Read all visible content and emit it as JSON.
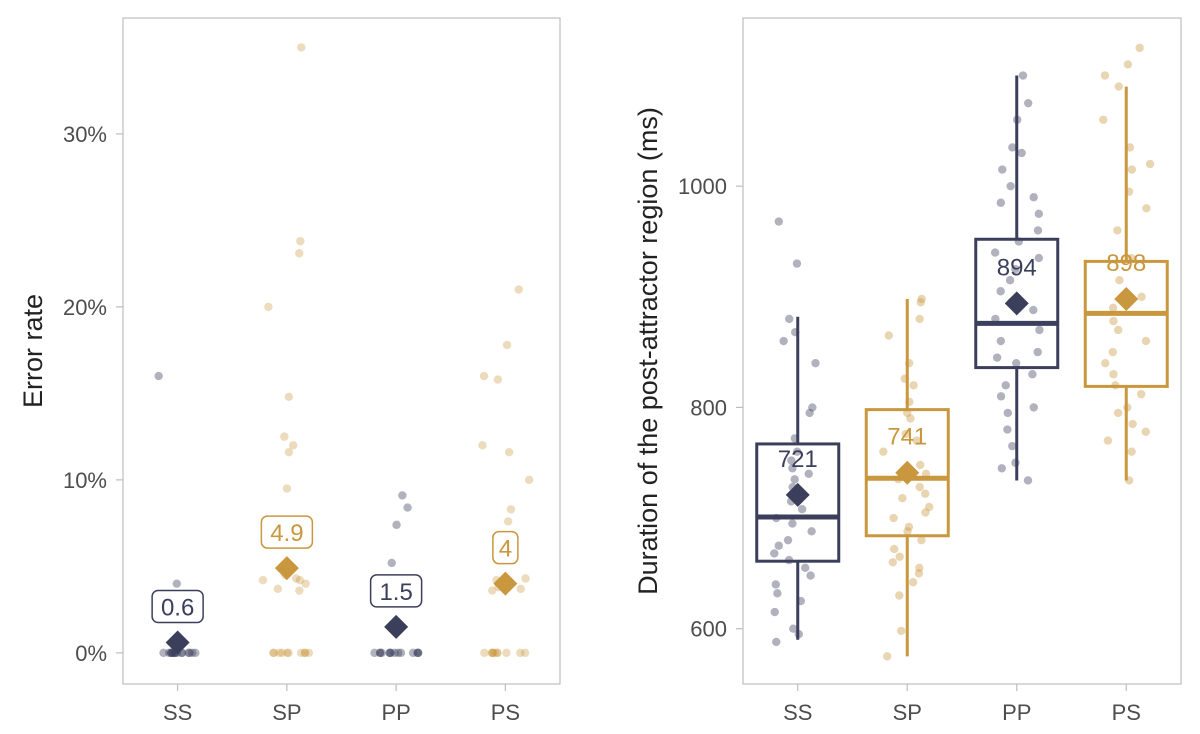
{
  "colors": {
    "singular": "#3b3f5c",
    "plural": "#c9973e",
    "panel_border": "#bdbdbd",
    "tick_mark": "#bdbdbd"
  },
  "chart_data": [
    {
      "type": "scatter",
      "title": "",
      "xlabel": "",
      "ylabel": "Error rate",
      "categories": [
        "SS",
        "SP",
        "PP",
        "PS"
      ],
      "category_color": [
        "singular",
        "plural",
        "singular",
        "plural"
      ],
      "ylim": [
        -0.018,
        0.367
      ],
      "yticks": [
        0,
        0.1,
        0.2,
        0.3
      ],
      "ytick_labels": [
        "0%",
        "10%",
        "20%",
        "30%"
      ],
      "means": [
        0.006,
        0.049,
        0.015,
        0.04
      ],
      "mean_labels": [
        "0.6",
        "4.9",
        "1.5",
        "4"
      ],
      "points": [
        [
          0.16,
          0.04,
          0,
          0,
          0,
          0,
          0,
          0,
          0,
          0,
          0,
          0,
          0,
          0,
          0,
          0,
          0,
          0
        ],
        [
          0.35,
          0.238,
          0.231,
          0.2,
          0.148,
          0.125,
          0.12,
          0.116,
          0.095,
          0.05,
          0.045,
          0.043,
          0.042,
          0.042,
          0.04,
          0.037,
          0.036,
          0,
          0,
          0,
          0,
          0,
          0,
          0,
          0,
          0,
          0
        ],
        [
          0.091,
          0.084,
          0.074,
          0.052,
          0,
          0,
          0,
          0,
          0,
          0,
          0,
          0,
          0,
          0,
          0,
          0,
          0,
          0
        ],
        [
          0.21,
          0.178,
          0.16,
          0.158,
          0.12,
          0.116,
          0.1,
          0.083,
          0.076,
          0.043,
          0.042,
          0.04,
          0.038,
          0.037,
          0.036,
          0,
          0,
          0,
          0,
          0,
          0,
          0,
          0,
          0,
          0
        ]
      ]
    },
    {
      "type": "box",
      "title": "",
      "xlabel": "",
      "ylabel": "Duration of the post-attractor region (ms)",
      "categories": [
        "SS",
        "SP",
        "PP",
        "PS"
      ],
      "category_color": [
        "singular",
        "plural",
        "singular",
        "plural"
      ],
      "ylim": [
        550,
        1152
      ],
      "yticks": [
        600,
        800,
        1000
      ],
      "ytick_labels": [
        "600",
        "800",
        "1000"
      ],
      "means": [
        721,
        741,
        894,
        898
      ],
      "mean_labels": [
        "721",
        "741",
        "894",
        "898"
      ],
      "boxes": [
        {
          "whisker_low": 590,
          "q1": 661,
          "median": 701,
          "q3": 767,
          "whisker_high": 882
        },
        {
          "whisker_low": 575,
          "q1": 684,
          "median": 736,
          "q3": 798,
          "whisker_high": 898
        },
        {
          "whisker_low": 734,
          "q1": 836,
          "median": 876,
          "q3": 952,
          "whisker_high": 1100
        },
        {
          "whisker_low": 734,
          "q1": 819,
          "median": 885,
          "q3": 932,
          "whisker_high": 1090
        }
      ],
      "points": [
        [
          968,
          930,
          880,
          868,
          860,
          840,
          800,
          795,
          772,
          760,
          752,
          745,
          740,
          735,
          728,
          722,
          715,
          708,
          700,
          695,
          688,
          680,
          675,
          668,
          662,
          655,
          648,
          640,
          632,
          625,
          615,
          600,
          595,
          588
        ],
        [
          898,
          895,
          880,
          865,
          840,
          826,
          820,
          805,
          795,
          790,
          776,
          770,
          760,
          748,
          740,
          735,
          728,
          722,
          718,
          710,
          705,
          700,
          692,
          688,
          680,
          672,
          665,
          660,
          655,
          650,
          642,
          630,
          598,
          575
        ],
        [
          1100,
          1075,
          1060,
          1035,
          1030,
          1015,
          1000,
          990,
          985,
          975,
          960,
          950,
          940,
          935,
          925,
          915,
          905,
          895,
          888,
          880,
          870,
          860,
          850,
          845,
          840,
          830,
          820,
          810,
          800,
          795,
          780,
          765,
          750,
          745,
          734
        ],
        [
          1125,
          1110,
          1100,
          1090,
          1060,
          1035,
          1020,
          1015,
          995,
          980,
          960,
          935,
          915,
          900,
          890,
          878,
          870,
          860,
          850,
          840,
          830,
          820,
          812,
          800,
          795,
          785,
          778,
          770,
          760,
          734
        ]
      ]
    }
  ]
}
